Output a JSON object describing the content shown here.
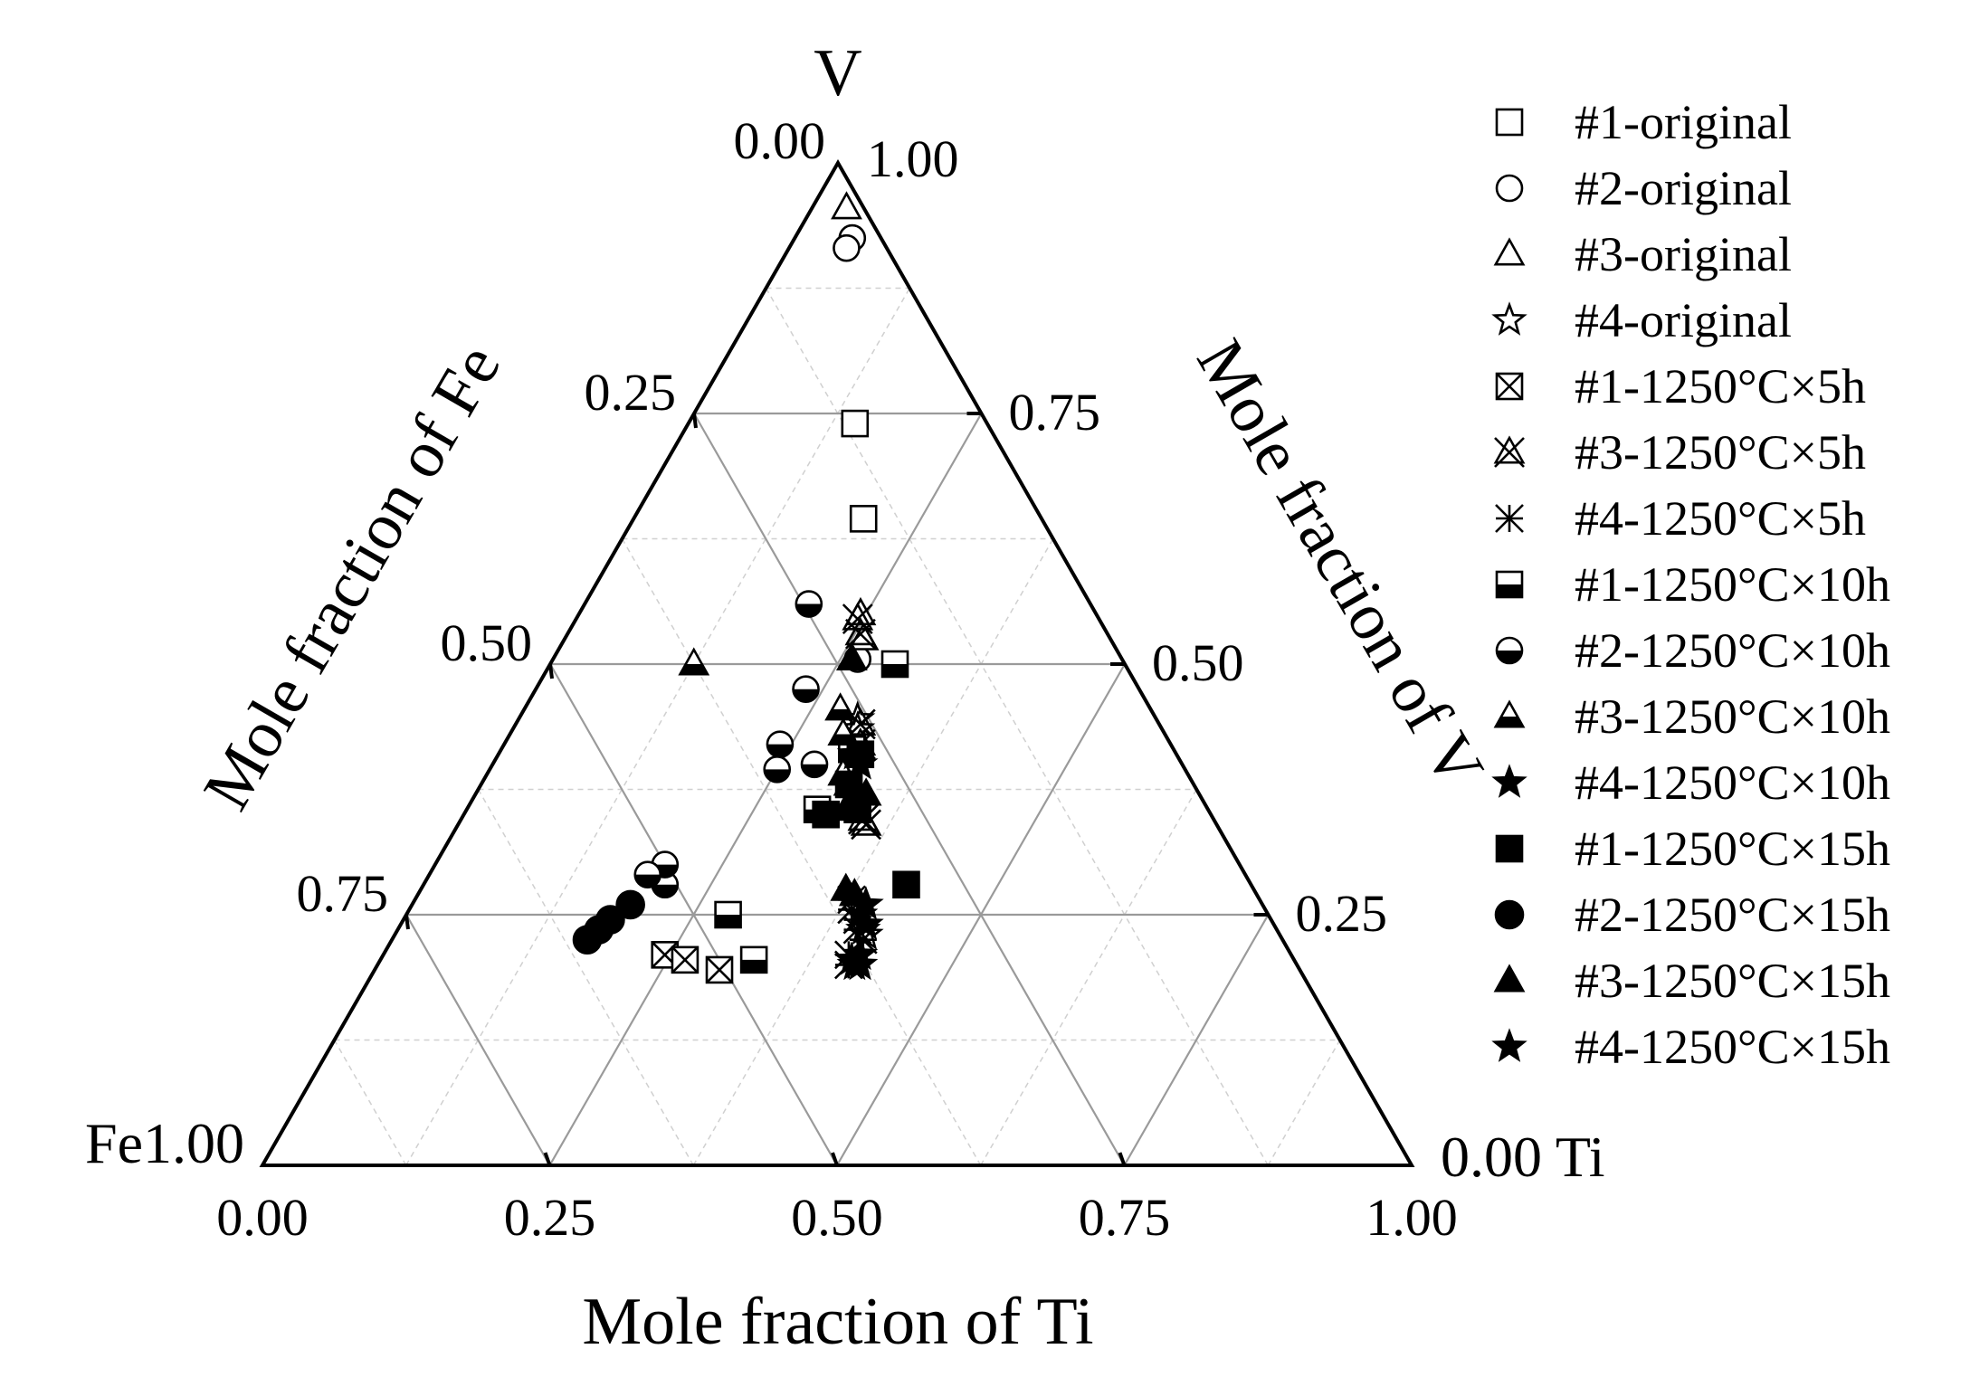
{
  "chart_data": {
    "type": "ternary-scatter",
    "vertices": {
      "top": "V",
      "left": "Fe",
      "right": "Ti"
    },
    "axes": {
      "bottom": {
        "label": "Mole fraction of Ti",
        "component": "Ti"
      },
      "left": {
        "label": "Mole fraction of Fe",
        "component": "Fe"
      },
      "right": {
        "label": "Mole fraction of V",
        "component": "V"
      }
    },
    "corner_labels": {
      "fe": "Fe1.00",
      "ti": "0.00 Ti",
      "v_left": "0.00",
      "v_right": "1.00"
    },
    "tick_values": [
      0,
      0.25,
      0.5,
      0.75,
      1
    ],
    "tick_text": {
      "bottom": [
        "0.00",
        "0.25",
        "0.50",
        "0.75",
        "1.00"
      ],
      "left": [
        "0.25",
        "0.50",
        "0.75"
      ],
      "right": [
        "0.75",
        "0.50",
        "0.25"
      ]
    },
    "major_grid": [
      0.25,
      0.5,
      0.75
    ],
    "minor_grid": [
      0.125,
      0.375,
      0.625,
      0.875
    ],
    "legend_position": "right",
    "series": [
      {
        "name": "#1-original",
        "marker": "square-open",
        "points": [
          {
            "ti": 0.145,
            "v": 0.74
          },
          {
            "ti": 0.2,
            "v": 0.645
          }
        ]
      },
      {
        "name": "#2-original",
        "marker": "circle-open",
        "points": [
          {
            "ti": 0.05,
            "v": 0.925
          },
          {
            "ti": 0.05,
            "v": 0.915
          },
          {
            "ti": 0.265,
            "v": 0.505
          }
        ]
      },
      {
        "name": "#3-original",
        "marker": "triangle-open",
        "points": [
          {
            "ti": 0.03,
            "v": 0.955
          },
          {
            "ti": 0.245,
            "v": 0.55
          },
          {
            "ti": 0.26,
            "v": 0.525
          }
        ]
      },
      {
        "name": "#4-original",
        "marker": "star-open",
        "points": [
          {
            "ti": 0.295,
            "v": 0.445
          },
          {
            "ti": 0.3,
            "v": 0.435
          },
          {
            "ti": 0.405,
            "v": 0.235
          },
          {
            "ti": 0.41,
            "v": 0.23
          }
        ]
      },
      {
        "name": "#1-1250°C×5h",
        "marker": "square-x",
        "points": [
          {
            "ti": 0.245,
            "v": 0.21
          },
          {
            "ti": 0.265,
            "v": 0.205
          },
          {
            "ti": 0.3,
            "v": 0.195
          }
        ]
      },
      {
        "name": "#3-1250°C×5h",
        "marker": "triangle-x",
        "points": [
          {
            "ti": 0.245,
            "v": 0.545
          },
          {
            "ti": 0.255,
            "v": 0.53
          },
          {
            "ti": 0.3,
            "v": 0.44
          },
          {
            "ti": 0.31,
            "v": 0.42
          },
          {
            "ti": 0.35,
            "v": 0.345
          },
          {
            "ti": 0.355,
            "v": 0.34
          }
        ]
      },
      {
        "name": "#4-1250°C×5h",
        "marker": "asterisk",
        "points": [
          {
            "ti": 0.38,
            "v": 0.265
          },
          {
            "ti": 0.385,
            "v": 0.255
          },
          {
            "ti": 0.395,
            "v": 0.245
          },
          {
            "ti": 0.4,
            "v": 0.235
          },
          {
            "ti": 0.41,
            "v": 0.225
          },
          {
            "ti": 0.41,
            "v": 0.2
          },
          {
            "ti": 0.405,
            "v": 0.21
          }
        ]
      },
      {
        "name": "#1-1250°C×10h",
        "marker": "square-half",
        "points": [
          {
            "ti": 0.3,
            "v": 0.5
          },
          {
            "ti": 0.305,
            "v": 0.415
          },
          {
            "ti": 0.305,
            "v": 0.355
          },
          {
            "ti": 0.325,
            "v": 0.205
          },
          {
            "ti": 0.28,
            "v": 0.25
          }
        ]
      },
      {
        "name": "#2-1250°C×10h",
        "marker": "circle-half",
        "points": [
          {
            "ti": 0.195,
            "v": 0.56
          },
          {
            "ti": 0.235,
            "v": 0.475
          },
          {
            "ti": 0.24,
            "v": 0.42
          },
          {
            "ti": 0.25,
            "v": 0.395
          },
          {
            "ti": 0.28,
            "v": 0.4
          },
          {
            "ti": 0.21,
            "v": 0.28
          },
          {
            "ti": 0.2,
            "v": 0.3
          },
          {
            "ti": 0.19,
            "v": 0.29
          }
        ]
      },
      {
        "name": "#3-1250°C×10h",
        "marker": "triangle-half",
        "points": [
          {
            "ti": 0.275,
            "v": 0.455
          },
          {
            "ti": 0.29,
            "v": 0.43
          },
          {
            "ti": 0.31,
            "v": 0.39
          },
          {
            "ti": 0.125,
            "v": 0.5
          },
          {
            "ti": 0.32,
            "v": 0.38
          }
        ]
      },
      {
        "name": "#4-1250°C×10h",
        "marker": "star-half",
        "points": [
          {
            "ti": 0.31,
            "v": 0.41
          },
          {
            "ti": 0.32,
            "v": 0.4
          },
          {
            "ti": 0.395,
            "v": 0.26
          },
          {
            "ti": 0.405,
            "v": 0.24
          }
        ]
      },
      {
        "name": "#1-1250°C×15h",
        "marker": "square-filled",
        "points": [
          {
            "ti": 0.315,
            "v": 0.41
          },
          {
            "ti": 0.32,
            "v": 0.38
          },
          {
            "ti": 0.34,
            "v": 0.355
          },
          {
            "ti": 0.315,
            "v": 0.35
          },
          {
            "ti": 0.42,
            "v": 0.28
          }
        ]
      },
      {
        "name": "#2-1250°C×15h",
        "marker": "circle-filled",
        "points": [
          {
            "ti": 0.19,
            "v": 0.26
          },
          {
            "ti": 0.18,
            "v": 0.245
          },
          {
            "ti": 0.17,
            "v": 0.225
          },
          {
            "ti": 0.175,
            "v": 0.235
          }
        ]
      },
      {
        "name": "#3-1250°C×15h",
        "marker": "triangle-filled",
        "points": [
          {
            "ti": 0.26,
            "v": 0.505
          },
          {
            "ti": 0.33,
            "v": 0.355
          },
          {
            "ti": 0.335,
            "v": 0.355
          },
          {
            "ti": 0.37,
            "v": 0.275
          },
          {
            "ti": 0.38,
            "v": 0.27
          },
          {
            "ti": 0.34,
            "v": 0.37
          }
        ]
      },
      {
        "name": "#4-1250°C×15h",
        "marker": "star-filled",
        "points": [
          {
            "ti": 0.395,
            "v": 0.25
          },
          {
            "ti": 0.41,
            "v": 0.205
          },
          {
            "ti": 0.415,
            "v": 0.21
          },
          {
            "ti": 0.42,
            "v": 0.2
          },
          {
            "ti": 0.415,
            "v": 0.2
          }
        ]
      }
    ]
  }
}
